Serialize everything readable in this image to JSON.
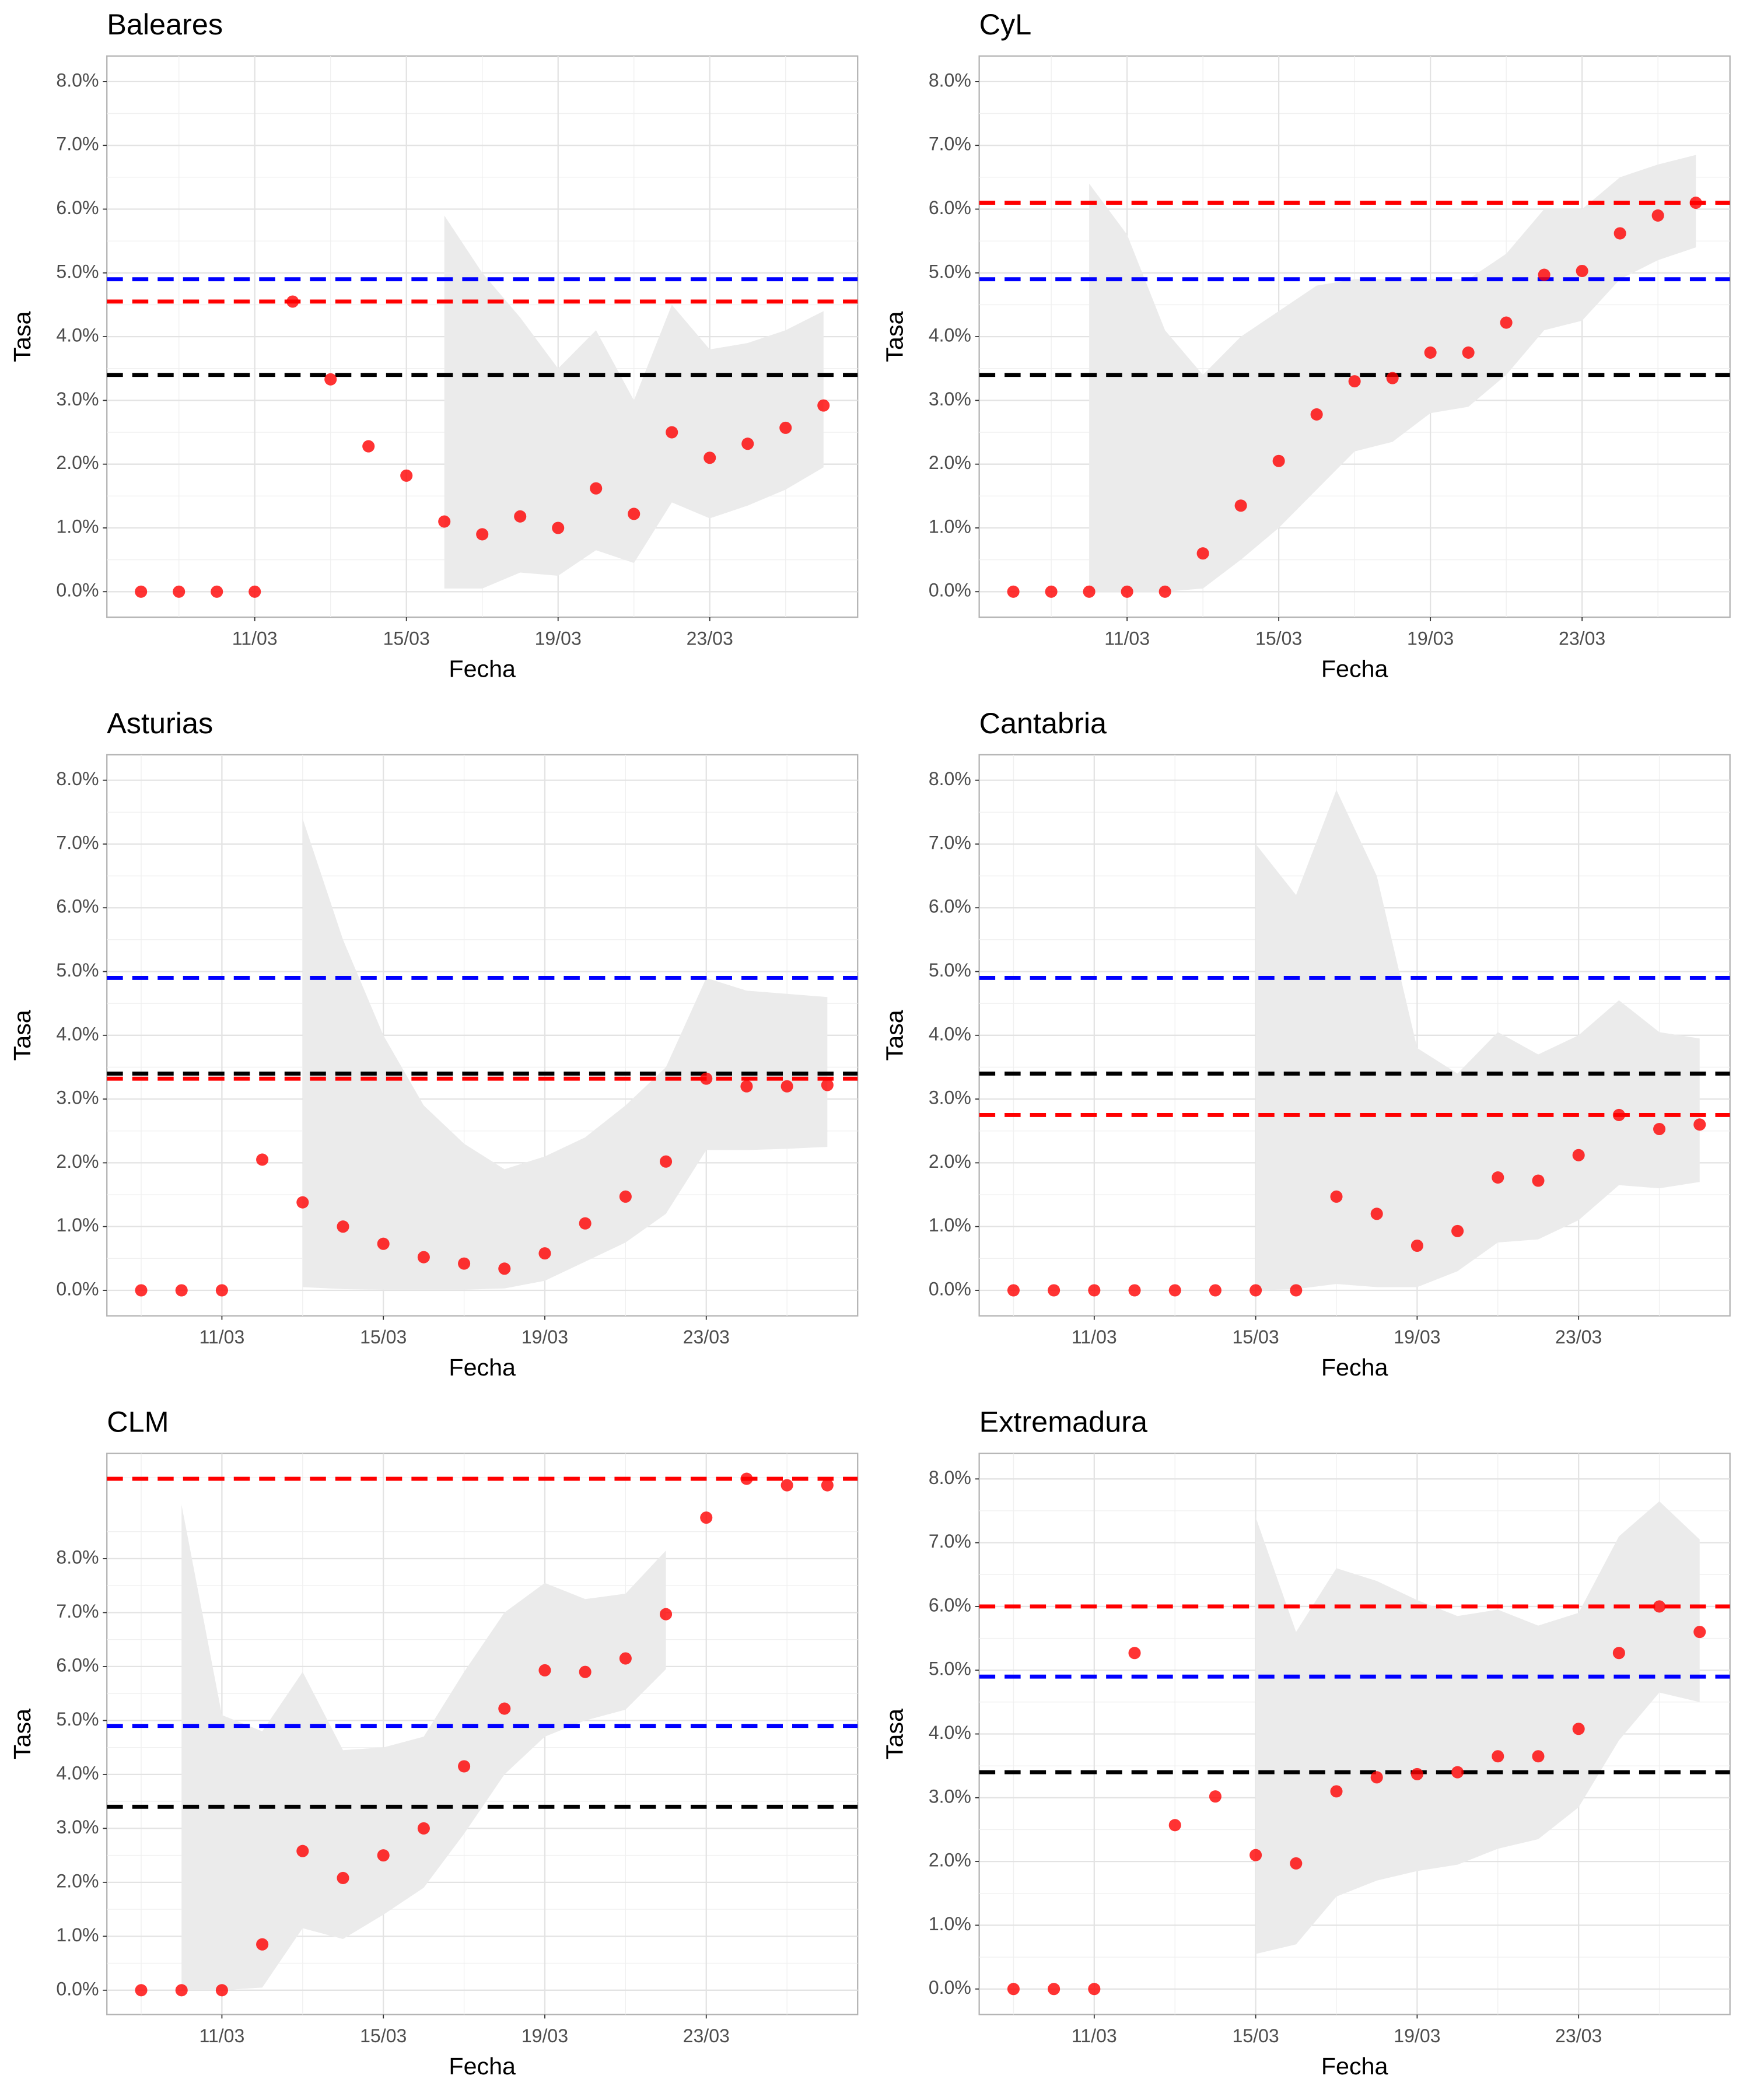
{
  "chart_data": [
    {
      "type": "scatter",
      "title": "Baleares",
      "x_label": "Fecha",
      "y_label": "Tasa",
      "color": "#ff0000",
      "x": [
        8,
        9,
        10,
        11,
        12,
        13,
        14,
        15,
        16,
        17,
        18,
        19,
        20,
        21,
        22,
        23,
        24,
        25,
        26
      ],
      "values": [
        0,
        0,
        0,
        0,
        4.55,
        3.33,
        2.28,
        1.82,
        1.1,
        0.9,
        1.18,
        1.0,
        1.62,
        1.22,
        2.5,
        2.1,
        2.32,
        2.57,
        2.92
      ],
      "band": {
        "color": "#ebebeb",
        "upper": [
          null,
          null,
          null,
          null,
          null,
          null,
          null,
          null,
          5.9,
          5.0,
          4.3,
          3.5,
          4.1,
          3.0,
          4.5,
          3.8,
          3.9,
          4.1,
          4.4
        ],
        "lower": [
          null,
          null,
          null,
          null,
          null,
          null,
          null,
          null,
          0.05,
          0.05,
          0.3,
          0.25,
          0.65,
          0.45,
          1.4,
          1.15,
          1.35,
          1.6,
          1.95
        ]
      },
      "hlines": [
        {
          "value": 4.9,
          "color": "#0000ff"
        },
        {
          "value": 4.55,
          "color": "#ff0000"
        },
        {
          "value": 3.4,
          "color": "#000000"
        }
      ],
      "xlim": [
        7.1,
        26.9
      ],
      "ylim": [
        -0.4,
        8.4
      ],
      "xticks": [
        {
          "value": 11,
          "label": "11/03"
        },
        {
          "value": 15,
          "label": "15/03"
        },
        {
          "value": 19,
          "label": "19/03"
        },
        {
          "value": 23,
          "label": "23/03"
        }
      ],
      "yticks": [
        {
          "value": 0,
          "label": "0.0%"
        },
        {
          "value": 1,
          "label": "1.0%"
        },
        {
          "value": 2,
          "label": "2.0%"
        },
        {
          "value": 3,
          "label": "3.0%"
        },
        {
          "value": 4,
          "label": "4.0%"
        },
        {
          "value": 5,
          "label": "5.0%"
        },
        {
          "value": 6,
          "label": "6.0%"
        },
        {
          "value": 7,
          "label": "7.0%"
        },
        {
          "value": 8,
          "label": "8.0%"
        }
      ],
      "grid": true
    },
    {
      "type": "scatter",
      "title": "CyL",
      "x_label": "Fecha",
      "y_label": "Tasa",
      "color": "#ff0000",
      "x": [
        8,
        9,
        10,
        11,
        12,
        13,
        14,
        15,
        16,
        17,
        18,
        19,
        20,
        21,
        22,
        23,
        24,
        25,
        26
      ],
      "values": [
        0,
        0,
        0,
        0,
        0,
        0.6,
        1.35,
        2.05,
        2.78,
        3.3,
        3.35,
        3.75,
        3.75,
        4.22,
        4.97,
        5.03,
        5.62,
        5.9,
        6.1
      ],
      "band": {
        "color": "#ebebeb",
        "upper": [
          null,
          null,
          6.4,
          5.6,
          4.1,
          3.4,
          4.0,
          4.4,
          4.8,
          4.9,
          4.9,
          4.9,
          4.9,
          5.3,
          6.0,
          6.0,
          6.5,
          6.7,
          6.85
        ],
        "lower": [
          null,
          null,
          0,
          0,
          0,
          0.05,
          0.5,
          1.0,
          1.6,
          2.2,
          2.35,
          2.8,
          2.9,
          3.4,
          4.1,
          4.25,
          4.9,
          5.2,
          5.4
        ]
      },
      "hlines": [
        {
          "value": 6.1,
          "color": "#ff0000"
        },
        {
          "value": 4.9,
          "color": "#0000ff"
        },
        {
          "value": 3.4,
          "color": "#000000"
        }
      ],
      "xlim": [
        7.1,
        26.9
      ],
      "ylim": [
        -0.4,
        8.4
      ],
      "xticks": [
        {
          "value": 11,
          "label": "11/03"
        },
        {
          "value": 15,
          "label": "15/03"
        },
        {
          "value": 19,
          "label": "19/03"
        },
        {
          "value": 23,
          "label": "23/03"
        }
      ],
      "yticks": [
        {
          "value": 0,
          "label": "0.0%"
        },
        {
          "value": 1,
          "label": "1.0%"
        },
        {
          "value": 2,
          "label": "2.0%"
        },
        {
          "value": 3,
          "label": "3.0%"
        },
        {
          "value": 4,
          "label": "4.0%"
        },
        {
          "value": 5,
          "label": "5.0%"
        },
        {
          "value": 6,
          "label": "6.0%"
        },
        {
          "value": 7,
          "label": "7.0%"
        },
        {
          "value": 8,
          "label": "8.0%"
        }
      ],
      "grid": true
    },
    {
      "type": "scatter",
      "title": "Asturias",
      "x_label": "Fecha",
      "y_label": "Tasa",
      "color": "#ff0000",
      "x": [
        9,
        10,
        11,
        12,
        13,
        14,
        15,
        16,
        17,
        18,
        19,
        20,
        21,
        22,
        23,
        24,
        25,
        26
      ],
      "values": [
        0,
        0,
        0,
        2.05,
        1.38,
        1.0,
        0.73,
        0.52,
        0.42,
        0.34,
        0.58,
        1.05,
        1.47,
        2.02,
        3.32,
        3.2,
        3.2,
        3.22
      ],
      "band": {
        "color": "#ebebeb",
        "upper": [
          null,
          null,
          null,
          null,
          7.4,
          5.5,
          4.0,
          2.9,
          2.3,
          1.9,
          2.1,
          2.4,
          2.9,
          3.5,
          4.9,
          4.7,
          4.65,
          4.6
        ],
        "lower": [
          null,
          null,
          null,
          null,
          0.05,
          0.02,
          0.01,
          0.01,
          0.01,
          0.03,
          0.15,
          0.45,
          0.75,
          1.2,
          2.2,
          2.2,
          2.22,
          2.25
        ]
      },
      "hlines": [
        {
          "value": 4.9,
          "color": "#0000ff"
        },
        {
          "value": 3.4,
          "color": "#000000"
        },
        {
          "value": 3.32,
          "color": "#ff0000"
        }
      ],
      "xlim": [
        8.15,
        26.75
      ],
      "ylim": [
        -0.4,
        8.4
      ],
      "xticks": [
        {
          "value": 11,
          "label": "11/03"
        },
        {
          "value": 15,
          "label": "15/03"
        },
        {
          "value": 19,
          "label": "19/03"
        },
        {
          "value": 23,
          "label": "23/03"
        }
      ],
      "yticks": [
        {
          "value": 0,
          "label": "0.0%"
        },
        {
          "value": 1,
          "label": "1.0%"
        },
        {
          "value": 2,
          "label": "2.0%"
        },
        {
          "value": 3,
          "label": "3.0%"
        },
        {
          "value": 4,
          "label": "4.0%"
        },
        {
          "value": 5,
          "label": "5.0%"
        },
        {
          "value": 6,
          "label": "6.0%"
        },
        {
          "value": 7,
          "label": "7.0%"
        },
        {
          "value": 8,
          "label": "8.0%"
        }
      ],
      "grid": true
    },
    {
      "type": "scatter",
      "title": "Cantabria",
      "x_label": "Fecha",
      "y_label": "Tasa",
      "color": "#ff0000",
      "x": [
        9,
        10,
        11,
        12,
        13,
        14,
        15,
        16,
        17,
        18,
        19,
        20,
        21,
        22,
        23,
        24,
        25,
        26
      ],
      "values": [
        0,
        0,
        0,
        0,
        0,
        0,
        0,
        0,
        1.47,
        1.2,
        0.7,
        0.93,
        1.77,
        1.72,
        2.12,
        2.75,
        2.53,
        2.6
      ],
      "band": {
        "color": "#ebebeb",
        "upper": [
          null,
          null,
          null,
          null,
          null,
          null,
          7.0,
          6.2,
          7.85,
          6.5,
          3.8,
          3.4,
          4.05,
          3.7,
          4.0,
          4.55,
          4.05,
          3.95
        ],
        "lower": [
          null,
          null,
          null,
          null,
          null,
          null,
          0,
          0.02,
          0.1,
          0.05,
          0.05,
          0.3,
          0.75,
          0.8,
          1.1,
          1.65,
          1.6,
          1.7
        ]
      },
      "hlines": [
        {
          "value": 4.9,
          "color": "#0000ff"
        },
        {
          "value": 3.4,
          "color": "#000000"
        },
        {
          "value": 2.75,
          "color": "#ff0000"
        }
      ],
      "xlim": [
        8.15,
        26.75
      ],
      "ylim": [
        -0.4,
        8.4
      ],
      "xticks": [
        {
          "value": 11,
          "label": "11/03"
        },
        {
          "value": 15,
          "label": "15/03"
        },
        {
          "value": 19,
          "label": "19/03"
        },
        {
          "value": 23,
          "label": "23/03"
        }
      ],
      "yticks": [
        {
          "value": 0,
          "label": "0.0%"
        },
        {
          "value": 1,
          "label": "1.0%"
        },
        {
          "value": 2,
          "label": "2.0%"
        },
        {
          "value": 3,
          "label": "3.0%"
        },
        {
          "value": 4,
          "label": "4.0%"
        },
        {
          "value": 5,
          "label": "5.0%"
        },
        {
          "value": 6,
          "label": "6.0%"
        },
        {
          "value": 7,
          "label": "7.0%"
        },
        {
          "value": 8,
          "label": "8.0%"
        }
      ],
      "grid": true
    },
    {
      "type": "scatter",
      "title": "CLM",
      "x_label": "Fecha",
      "y_label": "Tasa",
      "color": "#ff0000",
      "x": [
        9,
        10,
        11,
        12,
        13,
        14,
        15,
        16,
        17,
        18,
        19,
        20,
        21,
        22,
        23,
        24,
        25,
        26
      ],
      "values": [
        0,
        0,
        0,
        0.85,
        2.58,
        2.08,
        2.5,
        3.0,
        4.15,
        5.22,
        5.93,
        5.9,
        6.15,
        6.97,
        8.76,
        9.48,
        9.36,
        9.36
      ],
      "band": {
        "color": "#ebebeb",
        "upper": [
          null,
          9.0,
          5.1,
          4.8,
          5.9,
          4.45,
          4.5,
          4.7,
          5.9,
          7.0,
          7.55,
          7.25,
          7.35,
          8.15,
          null,
          null,
          null,
          null
        ],
        "lower": [
          null,
          0,
          0,
          0.05,
          1.15,
          0.95,
          1.4,
          1.9,
          2.9,
          4.0,
          4.7,
          5.0,
          5.2,
          5.95,
          null,
          null,
          null,
          null
        ]
      },
      "hlines": [
        {
          "value": 9.48,
          "color": "#ff0000"
        },
        {
          "value": 4.9,
          "color": "#0000ff"
        },
        {
          "value": 3.4,
          "color": "#000000"
        }
      ],
      "xlim": [
        8.15,
        26.75
      ],
      "ylim": [
        -0.45,
        9.95
      ],
      "xticks": [
        {
          "value": 11,
          "label": "11/03"
        },
        {
          "value": 15,
          "label": "15/03"
        },
        {
          "value": 19,
          "label": "19/03"
        },
        {
          "value": 23,
          "label": "23/03"
        }
      ],
      "yticks": [
        {
          "value": 0,
          "label": "0.0%"
        },
        {
          "value": 1,
          "label": "1.0%"
        },
        {
          "value": 2,
          "label": "2.0%"
        },
        {
          "value": 3,
          "label": "3.0%"
        },
        {
          "value": 4,
          "label": "4.0%"
        },
        {
          "value": 5,
          "label": "5.0%"
        },
        {
          "value": 6,
          "label": "6.0%"
        },
        {
          "value": 7,
          "label": "7.0%"
        },
        {
          "value": 8,
          "label": "8.0%"
        }
      ],
      "grid": true
    },
    {
      "type": "scatter",
      "title": "Extremadura",
      "x_label": "Fecha",
      "y_label": "Tasa",
      "color": "#ff0000",
      "x": [
        9,
        10,
        11,
        12,
        13,
        14,
        15,
        16,
        17,
        18,
        19,
        20,
        21,
        22,
        23,
        24,
        25,
        26
      ],
      "values": [
        0,
        0,
        0,
        5.27,
        2.57,
        3.02,
        2.1,
        1.97,
        3.1,
        3.32,
        3.37,
        3.4,
        3.65,
        3.65,
        4.08,
        5.27,
        6.0,
        5.6
      ],
      "band": {
        "color": "#ebebeb",
        "upper": [
          null,
          null,
          null,
          null,
          null,
          null,
          7.4,
          5.6,
          6.6,
          6.4,
          6.1,
          5.85,
          5.95,
          5.7,
          5.9,
          7.1,
          7.65,
          7.05
        ],
        "lower": [
          null,
          null,
          null,
          null,
          null,
          null,
          0.55,
          0.7,
          1.45,
          1.7,
          1.85,
          1.95,
          2.2,
          2.35,
          2.85,
          3.9,
          4.65,
          4.5
        ]
      },
      "hlines": [
        {
          "value": 6.0,
          "color": "#ff0000"
        },
        {
          "value": 4.9,
          "color": "#0000ff"
        },
        {
          "value": 3.4,
          "color": "#000000"
        }
      ],
      "xlim": [
        8.15,
        26.75
      ],
      "ylim": [
        -0.4,
        8.4
      ],
      "xticks": [
        {
          "value": 11,
          "label": "11/03"
        },
        {
          "value": 15,
          "label": "15/03"
        },
        {
          "value": 19,
          "label": "19/03"
        },
        {
          "value": 23,
          "label": "23/03"
        }
      ],
      "yticks": [
        {
          "value": 0,
          "label": "0.0%"
        },
        {
          "value": 1,
          "label": "1.0%"
        },
        {
          "value": 2,
          "label": "2.0%"
        },
        {
          "value": 3,
          "label": "3.0%"
        },
        {
          "value": 4,
          "label": "4.0%"
        },
        {
          "value": 5,
          "label": "5.0%"
        },
        {
          "value": 6,
          "label": "6.0%"
        },
        {
          "value": 7,
          "label": "7.0%"
        },
        {
          "value": 8,
          "label": "8.0%"
        }
      ],
      "grid": true
    }
  ]
}
